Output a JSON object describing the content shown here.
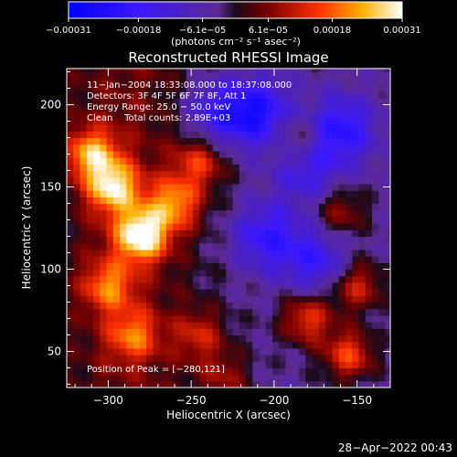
{
  "chart_data": {
    "type": "heatmap",
    "title": "Reconstructed RHESSI Image",
    "xlabel": "Heliocentric X (arcsec)",
    "ylabel": "Heliocentric Y (arcsec)",
    "xlim": [
      -325,
      -130
    ],
    "ylim": [
      28,
      222
    ],
    "x_ticks": [
      -300,
      -250,
      -200,
      -150
    ],
    "y_ticks": [
      50,
      100,
      150,
      200
    ],
    "x_tick_labels": [
      "−300",
      "−250",
      "−200",
      "−150"
    ],
    "y_tick_labels": [
      "50",
      "100",
      "150",
      "200"
    ],
    "colorbar": {
      "range": [
        -0.00031,
        0.00031
      ],
      "ticks": [
        -0.00031,
        -0.00018,
        -6.1e-05,
        6.1e-05,
        0.00018,
        0.00031
      ],
      "tick_labels": [
        "−0.00031",
        "−0.00018",
        "−6.1e−05",
        "6.1e−05",
        "0.00018",
        "0.00031"
      ],
      "unit_label": "(photons cm⁻² s⁻¹ asec⁻²)"
    },
    "annotations": [
      "11−Jan−2004 18:33:08.000 to 18:37:08.000",
      "Detectors: 3F 4F 5F 6F 7F 8F, Att 1",
      "Energy Range: 25.0 − 50.0 keV",
      "Clean    Total counts: 2.89E+03"
    ],
    "peak_label": "Position of Peak = [−280,121]",
    "peak_position": [
      -280,
      121
    ],
    "hotspots": [
      {
        "x": -280,
        "y": 121,
        "value": 0.00031
      },
      {
        "x": -297,
        "y": 150,
        "value": 0.00025
      },
      {
        "x": -310,
        "y": 170,
        "value": 0.00022
      },
      {
        "x": -260,
        "y": 140,
        "value": 0.0002
      },
      {
        "x": -245,
        "y": 165,
        "value": 0.00015
      },
      {
        "x": -300,
        "y": 90,
        "value": 0.00017
      },
      {
        "x": -285,
        "y": 60,
        "value": 0.00016
      },
      {
        "x": -180,
        "y": 70,
        "value": 0.00018
      },
      {
        "x": -150,
        "y": 90,
        "value": 0.00016
      },
      {
        "x": -155,
        "y": 48,
        "value": 0.00019
      },
      {
        "x": -185,
        "y": 180,
        "value": 0.0001
      },
      {
        "x": -160,
        "y": 135,
        "value": 0.00012
      },
      {
        "x": -245,
        "y": 60,
        "value": 0.00012
      },
      {
        "x": -230,
        "y": 35,
        "value": 0.0001
      }
    ],
    "coldspots": [
      {
        "x": -210,
        "y": 195,
        "value": -0.0002
      },
      {
        "x": -160,
        "y": 185,
        "value": -0.00018
      },
      {
        "x": -205,
        "y": 120,
        "value": -0.00016
      },
      {
        "x": -235,
        "y": 195,
        "value": -0.00015
      },
      {
        "x": -180,
        "y": 160,
        "value": -0.00012
      },
      {
        "x": -175,
        "y": 105,
        "value": -0.00014
      }
    ]
  },
  "footer": {
    "timestamp": "28−Apr−2022 00:43"
  },
  "colors": {
    "background": "#000000",
    "text": "#ffffff"
  }
}
